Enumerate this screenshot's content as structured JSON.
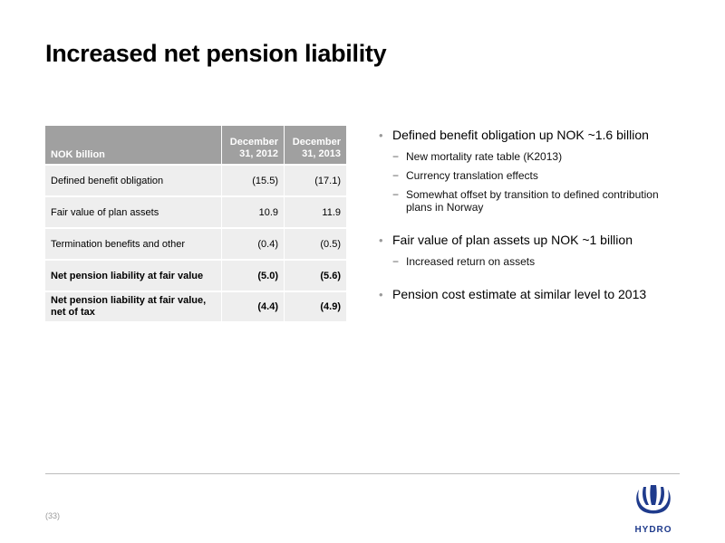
{
  "title": "Increased net pension liability",
  "table": {
    "header": {
      "label": "NOK billion",
      "col1": "December 31, 2012",
      "col2": "December 31, 2013"
    },
    "rows": [
      {
        "label": "Defined benefit obligation",
        "v2012": "(15.5)",
        "v2013": "(17.1)"
      },
      {
        "label": "Fair value of plan assets",
        "v2012": "10.9",
        "v2013": "11.9"
      },
      {
        "label": "Termination benefits and other",
        "v2012": "(0.4)",
        "v2013": "(0.5)"
      },
      {
        "label": "Net pension liability at fair value",
        "v2012": "(5.0)",
        "v2013": "(5.6)"
      },
      {
        "label": "Net pension liability at fair value, net of tax",
        "v2012": "(4.4)",
        "v2013": "(4.9)"
      }
    ]
  },
  "bullets": [
    {
      "text": "Defined benefit obligation up NOK ~1.6 billion",
      "subs": [
        "New mortality rate table (K2013)",
        "Currency translation effects",
        "Somewhat offset by transition to defined contribution plans in Norway"
      ]
    },
    {
      "text": "Fair value of plan assets up NOK ~1 billion",
      "subs": [
        "Increased return on assets"
      ]
    },
    {
      "text": "Pension cost estimate at similar level to 2013",
      "subs": []
    }
  ],
  "footer": {
    "page_number": "(33)",
    "logo_text": "HYDRO"
  },
  "colors": {
    "header_bg": "#a0a0a0",
    "row_bg": "#eeeeee",
    "logo_blue": "#1f3b8c"
  },
  "icons": {
    "logo": "hydro-viking-ship-logo"
  }
}
